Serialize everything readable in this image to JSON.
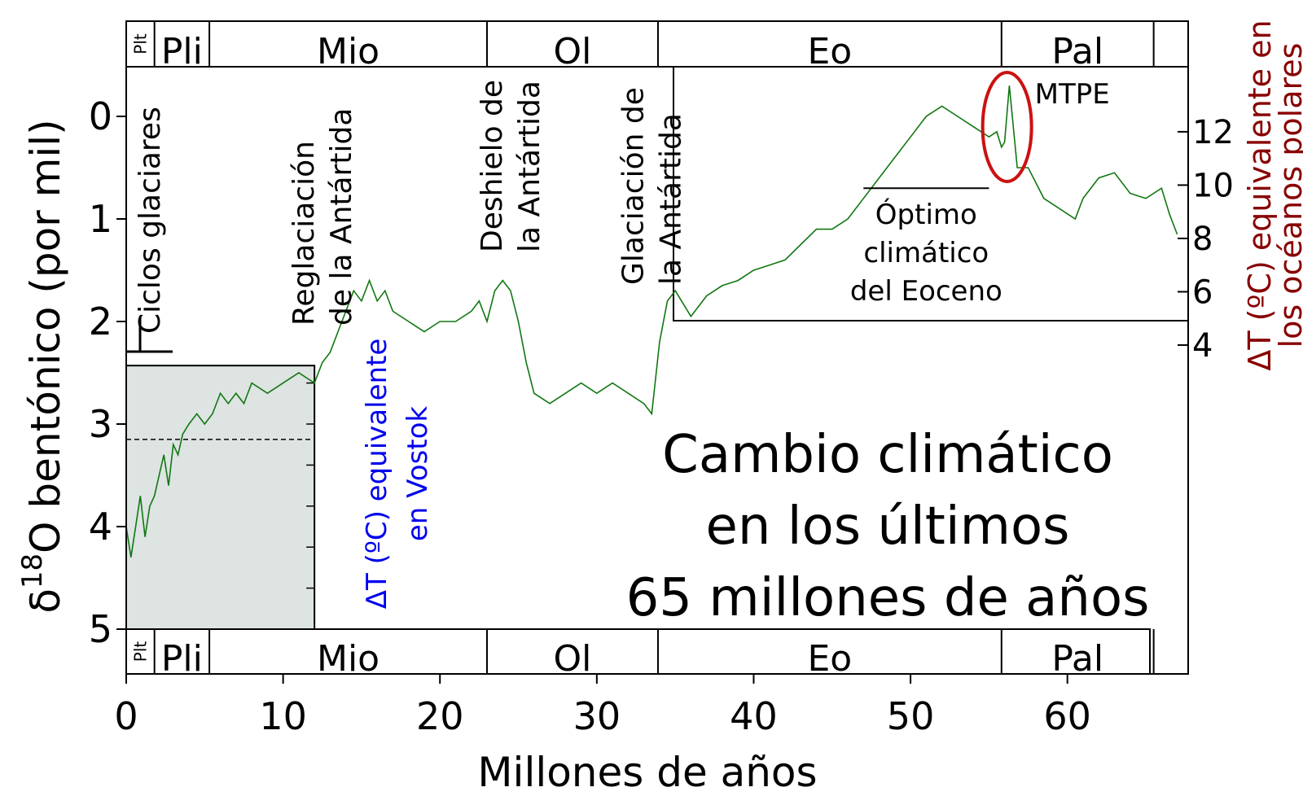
{
  "chart_data": {
    "type": "line",
    "title": "Cambio climático en los últimos 65 millones de años",
    "title_lines": [
      "Cambio climático",
      "en los últimos",
      "65 millones de años"
    ],
    "xlabel": "Millones de años",
    "ylabel": "δ18O bentónico (por mil)",
    "ylabel_parts": {
      "delta": "δ",
      "sup": "18",
      "rest": "O bentónico (por mil)"
    },
    "xlim": [
      0,
      67.7
    ],
    "ylim": [
      5,
      -0.5
    ],
    "x_ticks": [
      0,
      10,
      20,
      30,
      40,
      50,
      60
    ],
    "x_tick_labels": [
      "0",
      "10",
      "20",
      "30",
      "40",
      "50",
      "60"
    ],
    "y_ticks": [
      0,
      1,
      2,
      3,
      4,
      5
    ],
    "y_tick_labels": [
      "0",
      "1",
      "2",
      "3",
      "4",
      "5"
    ],
    "y2_label_lines": [
      "ΔT (ºC) equivalente en",
      "los océanos polares"
    ],
    "y2_ticks": [
      {
        "value": 12,
        "d18o": 0.15
      },
      {
        "value": 10,
        "d18o": 0.67
      },
      {
        "value": 8,
        "d18o": 1.19
      },
      {
        "value": 6,
        "d18o": 1.71
      },
      {
        "value": 4,
        "d18o": 2.23
      }
    ],
    "vostok_label_lines": [
      "ΔT (ºC) equivalente",
      "en Vostok"
    ],
    "vostok_reference_line_d18o": 3.15,
    "vostok_box": {
      "x_range": [
        0,
        12
      ],
      "d18o_range": [
        2.43,
        5
      ]
    },
    "grid": false,
    "legend": "none",
    "colors": {
      "series": "#117711",
      "vostok": "#0000ee",
      "polar": "#880000",
      "highlight": "#cc1111",
      "vostok_fill": "#dde4e2"
    },
    "epochs": [
      {
        "label": "Plt",
        "start": 0,
        "end": 1.8
      },
      {
        "label": "Pli",
        "start": 1.8,
        "end": 5.3
      },
      {
        "label": "Mio",
        "start": 5.3,
        "end": 23
      },
      {
        "label": "Ol",
        "start": 23,
        "end": 33.9
      },
      {
        "label": "Eo",
        "start": 33.9,
        "end": 55.8
      },
      {
        "label": "Pal",
        "start": 55.8,
        "end": 65.5
      }
    ],
    "events": [
      {
        "label_lines": [
          "Ciclos glaciares"
        ],
        "x": 1.5
      },
      {
        "label_lines": [
          "Reglaciación",
          "de la Antártida"
        ],
        "x": 12.5
      },
      {
        "label_lines": [
          "Deshielo de",
          "la Antártida"
        ],
        "x": 24.5
      },
      {
        "label_lines": [
          "Glaciación de",
          "la Antártida"
        ],
        "x": 33.5
      }
    ],
    "annotations": [
      {
        "label": "MTPE",
        "x": 56,
        "d18o": -0.1
      },
      {
        "label_lines": [
          "Óptimo",
          "climático",
          "del Eoceno"
        ],
        "x_range": [
          47,
          55
        ],
        "d18o": 0.7
      }
    ],
    "series": [
      {
        "x": [
          0.0,
          0.3,
          0.6,
          0.9,
          1.2,
          1.5,
          1.8,
          2.1,
          2.4,
          2.7,
          3.0,
          3.3,
          3.6,
          4.0,
          4.5,
          5.0,
          5.5,
          6.0,
          6.5,
          7.0,
          7.5,
          8.0,
          9.0,
          10.0,
          11.0,
          12.0,
          12.5,
          13.0,
          13.5,
          14.0,
          14.5,
          15.0,
          15.5,
          16.0,
          16.5,
          17.0,
          18.0,
          19.0,
          20.0,
          21.0,
          22.0,
          22.5,
          23.0,
          23.5,
          24.0,
          24.5,
          25.0,
          25.5,
          26.0,
          27.0,
          28.0,
          29.0,
          30.0,
          31.0,
          32.0,
          33.0,
          33.5,
          34.0,
          34.5,
          35.0,
          36.0,
          37.0,
          38.0,
          39.0,
          40.0,
          41.0,
          42.0,
          43.0,
          44.0,
          45.0,
          46.0,
          47.0,
          48.0,
          49.0,
          50.0,
          51.0,
          52.0,
          53.0,
          54.0,
          55.0,
          55.5,
          55.8,
          56.0,
          56.3,
          56.8,
          57.5,
          58.5,
          59.5,
          60.5,
          61.0,
          62.0,
          63.0,
          64.0,
          65.0,
          66.0,
          66.5,
          67.0
        ],
        "values": [
          4.0,
          4.3,
          4.0,
          3.7,
          4.1,
          3.8,
          3.7,
          3.5,
          3.3,
          3.6,
          3.2,
          3.3,
          3.1,
          3.0,
          2.9,
          3.0,
          2.9,
          2.7,
          2.8,
          2.7,
          2.8,
          2.6,
          2.7,
          2.6,
          2.5,
          2.6,
          2.4,
          2.3,
          2.1,
          1.9,
          1.7,
          1.8,
          1.6,
          1.8,
          1.7,
          1.9,
          2.0,
          2.1,
          2.0,
          2.0,
          1.9,
          1.8,
          2.0,
          1.7,
          1.6,
          1.7,
          2.0,
          2.4,
          2.7,
          2.8,
          2.7,
          2.6,
          2.7,
          2.6,
          2.7,
          2.8,
          2.9,
          2.2,
          1.8,
          1.7,
          1.95,
          1.75,
          1.65,
          1.6,
          1.5,
          1.45,
          1.4,
          1.25,
          1.1,
          1.1,
          1.0,
          0.8,
          0.6,
          0.4,
          0.2,
          0.0,
          -0.1,
          0.0,
          0.1,
          0.2,
          0.15,
          0.3,
          0.25,
          -0.3,
          0.5,
          0.5,
          0.8,
          0.9,
          1.0,
          0.8,
          0.6,
          0.55,
          0.75,
          0.8,
          0.7,
          0.95,
          1.15
        ]
      }
    ]
  }
}
